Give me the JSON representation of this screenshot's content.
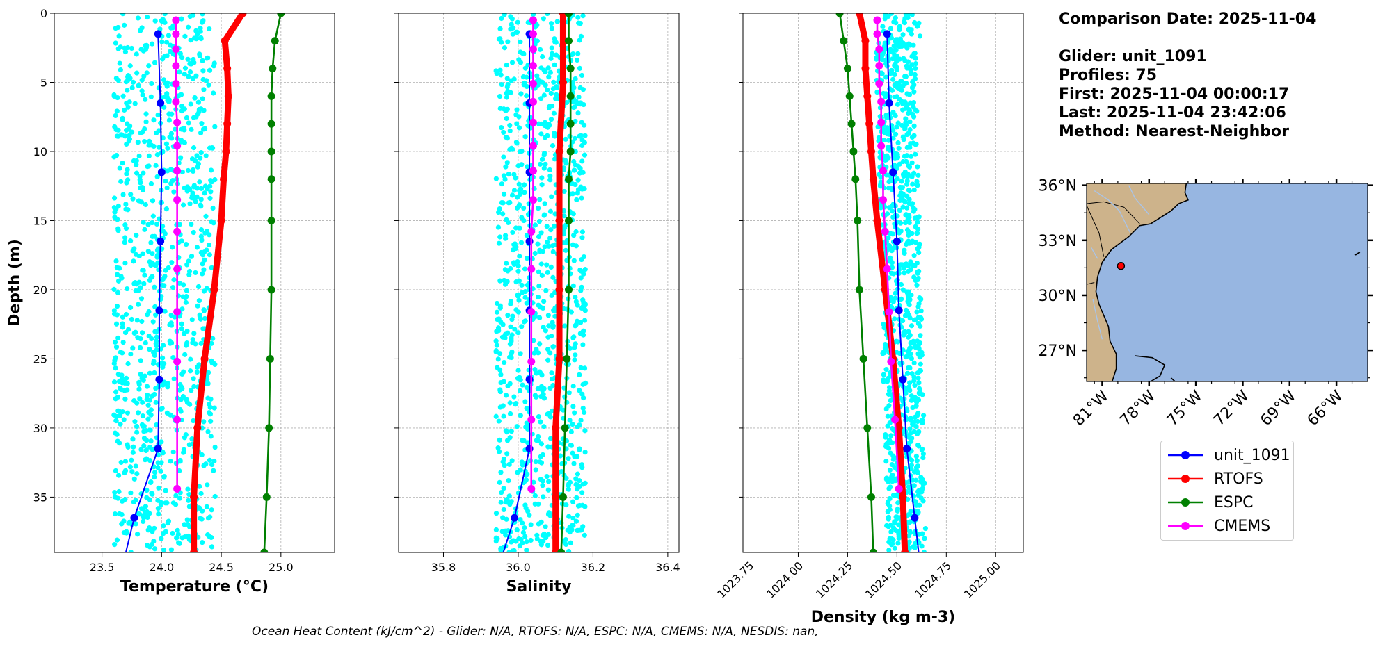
{
  "header": {
    "comparison_date": "Comparison Date: 2025-11-04",
    "glider": "Glider: unit_1091",
    "profiles": "Profiles: 75",
    "first": "First: 2025-11-04 00:00:17",
    "last": "Last: 2025-11-04 23:42:06",
    "method": "Method: Nearest-Neighbor"
  },
  "footer": "Ocean Heat Content (kJ/cm^2) - Glider: N/A,  RTOFS: N/A,  ESPC: N/A,  CMEMS: N/A,  NESDIS: nan,",
  "colors": {
    "glider": "#0000ff",
    "rtofs": "#ff0000",
    "espc": "#008000",
    "cmems": "#ff00ff",
    "scatter": "#00ffff",
    "land": "#cdb38b",
    "ocean": "#97b6e1",
    "river": "#a9c4e8"
  },
  "legend": [
    {
      "label": "unit_1091",
      "color": "#0000ff"
    },
    {
      "label": "RTOFS",
      "color": "#ff0000"
    },
    {
      "label": "ESPC",
      "color": "#008000"
    },
    {
      "label": "CMEMS",
      "color": "#ff00ff"
    }
  ],
  "chart_data": [
    {
      "type": "line",
      "xlabel": "Temperature (°C)",
      "ylabel": "Depth (m)",
      "xlim": [
        23.1,
        25.45
      ],
      "ylim": [
        39,
        0
      ],
      "xticks": [
        23.5,
        24.0,
        24.5,
        25.0
      ],
      "xtick_labels": [
        "23.5",
        "24.0",
        "24.5",
        "25.0"
      ],
      "yticks": [
        0,
        5,
        10,
        15,
        20,
        25,
        30,
        35
      ],
      "grid": true,
      "scatter": {
        "name": "unit_1091 profiles",
        "xrange": [
          23.6,
          24.45
        ],
        "depthrange": [
          0,
          39
        ]
      },
      "series": [
        {
          "name": "unit_1091",
          "depth": [
            1.5,
            6.5,
            11.5,
            16.5,
            21.5,
            26.5,
            31.5,
            36.5
          ],
          "values": [
            23.97,
            23.99,
            24.0,
            23.99,
            23.98,
            23.98,
            23.97,
            23.77
          ],
          "linewidth": "thin",
          "extend_to": [
            23.7,
            39
          ]
        },
        {
          "name": "RTOFS",
          "depth": [
            0,
            2,
            4,
            6,
            8,
            10,
            12,
            15,
            20,
            25,
            30,
            35,
            39
          ],
          "values": [
            24.68,
            24.53,
            24.55,
            24.56,
            24.55,
            24.54,
            24.52,
            24.5,
            24.44,
            24.36,
            24.3,
            24.27,
            24.27
          ],
          "linewidth": "thick"
        },
        {
          "name": "ESPC",
          "depth": [
            0,
            2,
            4,
            6,
            8,
            10,
            12,
            15,
            20,
            25,
            30,
            35,
            39
          ],
          "values": [
            25.0,
            24.95,
            24.93,
            24.92,
            24.92,
            24.92,
            24.92,
            24.92,
            24.92,
            24.91,
            24.9,
            24.88,
            24.86
          ],
          "linewidth": "medium"
        },
        {
          "name": "CMEMS",
          "depth": [
            0.5,
            1.5,
            2.6,
            3.8,
            5.1,
            6.4,
            7.9,
            9.6,
            11.4,
            13.5,
            15.8,
            18.5,
            21.6,
            25.2,
            29.4,
            34.4
          ],
          "values": [
            24.12,
            24.12,
            24.12,
            24.12,
            24.12,
            24.12,
            24.13,
            24.13,
            24.13,
            24.13,
            24.13,
            24.13,
            24.13,
            24.13,
            24.13,
            24.13
          ],
          "linewidth": "medium"
        }
      ]
    },
    {
      "type": "line",
      "xlabel": "Salinity",
      "xlim": [
        35.68,
        36.43
      ],
      "ylim": [
        39,
        0
      ],
      "xticks": [
        35.8,
        36.0,
        36.2,
        36.4
      ],
      "xtick_labels": [
        "35.8",
        "36.0",
        "36.2",
        "36.4"
      ],
      "yticks": [
        0,
        5,
        10,
        15,
        20,
        25,
        30,
        35
      ],
      "grid": true,
      "scatter": {
        "name": "unit_1091 profiles",
        "xrange": [
          35.94,
          36.18
        ],
        "depthrange": [
          0,
          39
        ]
      },
      "series": [
        {
          "name": "unit_1091",
          "depth": [
            1.5,
            6.5,
            11.5,
            16.5,
            21.5,
            26.5,
            31.5,
            36.5
          ],
          "values": [
            36.03,
            36.03,
            36.03,
            36.03,
            36.03,
            36.03,
            36.03,
            35.99
          ],
          "linewidth": "thin",
          "extend_to": [
            35.96,
            39
          ]
        },
        {
          "name": "RTOFS",
          "depth": [
            0,
            5,
            10,
            15,
            20,
            25,
            30,
            35,
            39
          ],
          "values": [
            36.12,
            36.12,
            36.11,
            36.11,
            36.11,
            36.11,
            36.1,
            36.1,
            36.1
          ],
          "linewidth": "thick"
        },
        {
          "name": "ESPC",
          "depth": [
            0,
            2,
            4,
            6,
            8,
            10,
            12,
            15,
            20,
            25,
            30,
            35,
            39
          ],
          "values": [
            36.135,
            36.135,
            36.14,
            36.14,
            36.14,
            36.14,
            36.135,
            36.135,
            36.135,
            36.13,
            36.125,
            36.12,
            36.115
          ],
          "linewidth": "medium"
        },
        {
          "name": "CMEMS",
          "depth": [
            0.5,
            1.5,
            2.6,
            3.8,
            5.1,
            6.4,
            7.9,
            9.6,
            11.4,
            13.5,
            15.8,
            18.5,
            21.6,
            25.2,
            29.4,
            34.4
          ],
          "values": [
            36.04,
            36.04,
            36.04,
            36.04,
            36.04,
            36.04,
            36.04,
            36.04,
            36.04,
            36.04,
            36.035,
            36.035,
            36.035,
            36.035,
            36.035,
            36.035
          ],
          "linewidth": "medium"
        }
      ]
    },
    {
      "type": "line",
      "xlabel": "Density (kg m-3)",
      "xlim": [
        1023.72,
        1025.14
      ],
      "ylim": [
        39,
        0
      ],
      "xticks": [
        1023.75,
        1024.0,
        1024.25,
        1024.5,
        1024.75,
        1025.0
      ],
      "xtick_labels": [
        "1023.75",
        "1024.00",
        "1024.25",
        "1024.50",
        "1024.75",
        "1025.00"
      ],
      "yticks": [
        0,
        5,
        10,
        15,
        20,
        25,
        30,
        35
      ],
      "grid": true,
      "scatter": {
        "name": "unit_1091 profiles",
        "xrange": [
          1024.42,
          1024.62
        ],
        "depthrange": [
          0,
          39
        ],
        "tilt": true
      },
      "series": [
        {
          "name": "unit_1091",
          "depth": [
            1.5,
            6.5,
            11.5,
            16.5,
            21.5,
            26.5,
            31.5,
            36.5
          ],
          "values": [
            1024.45,
            1024.46,
            1024.48,
            1024.5,
            1024.51,
            1024.53,
            1024.55,
            1024.59
          ],
          "linewidth": "thin",
          "extend_to": [
            1024.61,
            39
          ]
        },
        {
          "name": "RTOFS",
          "depth": [
            0,
            2,
            4,
            6,
            8,
            10,
            12,
            15,
            20,
            25,
            30,
            35,
            39
          ],
          "values": [
            1024.31,
            1024.34,
            1024.34,
            1024.35,
            1024.36,
            1024.37,
            1024.38,
            1024.4,
            1024.44,
            1024.48,
            1024.51,
            1024.53,
            1024.54
          ],
          "linewidth": "thick"
        },
        {
          "name": "ESPC",
          "depth": [
            0,
            2,
            4,
            6,
            8,
            10,
            12,
            15,
            20,
            25,
            30,
            35,
            39
          ],
          "values": [
            1024.21,
            1024.23,
            1024.25,
            1024.26,
            1024.27,
            1024.28,
            1024.29,
            1024.3,
            1024.31,
            1024.33,
            1024.35,
            1024.37,
            1024.38
          ],
          "linewidth": "medium"
        },
        {
          "name": "CMEMS",
          "depth": [
            0.5,
            1.5,
            2.6,
            3.8,
            5.1,
            6.4,
            7.9,
            9.6,
            11.4,
            13.5,
            15.8,
            18.5,
            21.6,
            25.2,
            29.4,
            34.4
          ],
          "values": [
            1024.4,
            1024.4,
            1024.41,
            1024.41,
            1024.41,
            1024.42,
            1024.42,
            1024.42,
            1024.43,
            1024.43,
            1024.44,
            1024.45,
            1024.46,
            1024.47,
            1024.49,
            1024.51
          ],
          "linewidth": "medium"
        }
      ]
    }
  ],
  "map": {
    "lat_ticks": [
      36,
      33,
      30,
      27
    ],
    "lat_labels": [
      "36°N",
      "33°N",
      "30°N",
      "27°N"
    ],
    "lon_ticks": [
      -81,
      -78,
      -75,
      -72,
      -69,
      -66
    ],
    "lon_labels": [
      "81°W",
      "78°W",
      "75°W",
      "72°W",
      "69°W",
      "66°W"
    ],
    "extent": {
      "lon": [
        -82.0,
        -64.0
      ],
      "lat": [
        25.3,
        36.1
      ]
    },
    "glider_position": {
      "lon": -79.8,
      "lat": 31.6
    }
  }
}
